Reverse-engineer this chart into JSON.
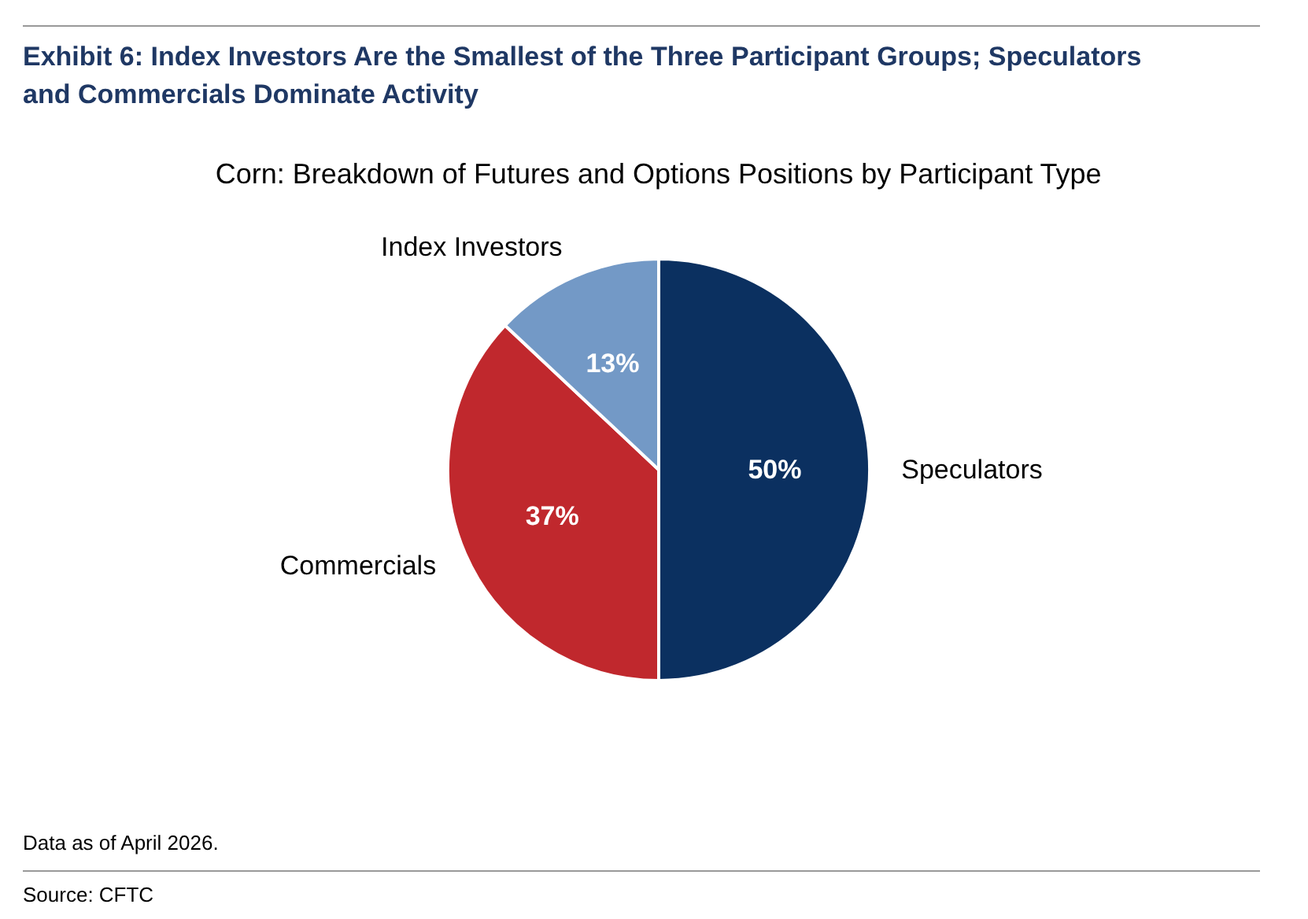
{
  "chart_data": {
    "type": "pie",
    "title": "Exhibit 6: Index Investors Are the Smallest of the Three Participant Groups; Speculators and Commercials Dominate Activity",
    "subtitle": "Corn: Breakdown of Futures and Options Positions by Participant Type",
    "categories": [
      "Speculators",
      "Commercials",
      "Index Investors"
    ],
    "values": [
      50,
      37,
      13
    ],
    "colors": [
      "#0b3060",
      "#c0282d",
      "#7399c6"
    ],
    "value_labels": [
      "50%",
      "37%",
      "13%"
    ],
    "annotations": [
      "Data as of April 2026.",
      "Source: CFTC"
    ]
  }
}
